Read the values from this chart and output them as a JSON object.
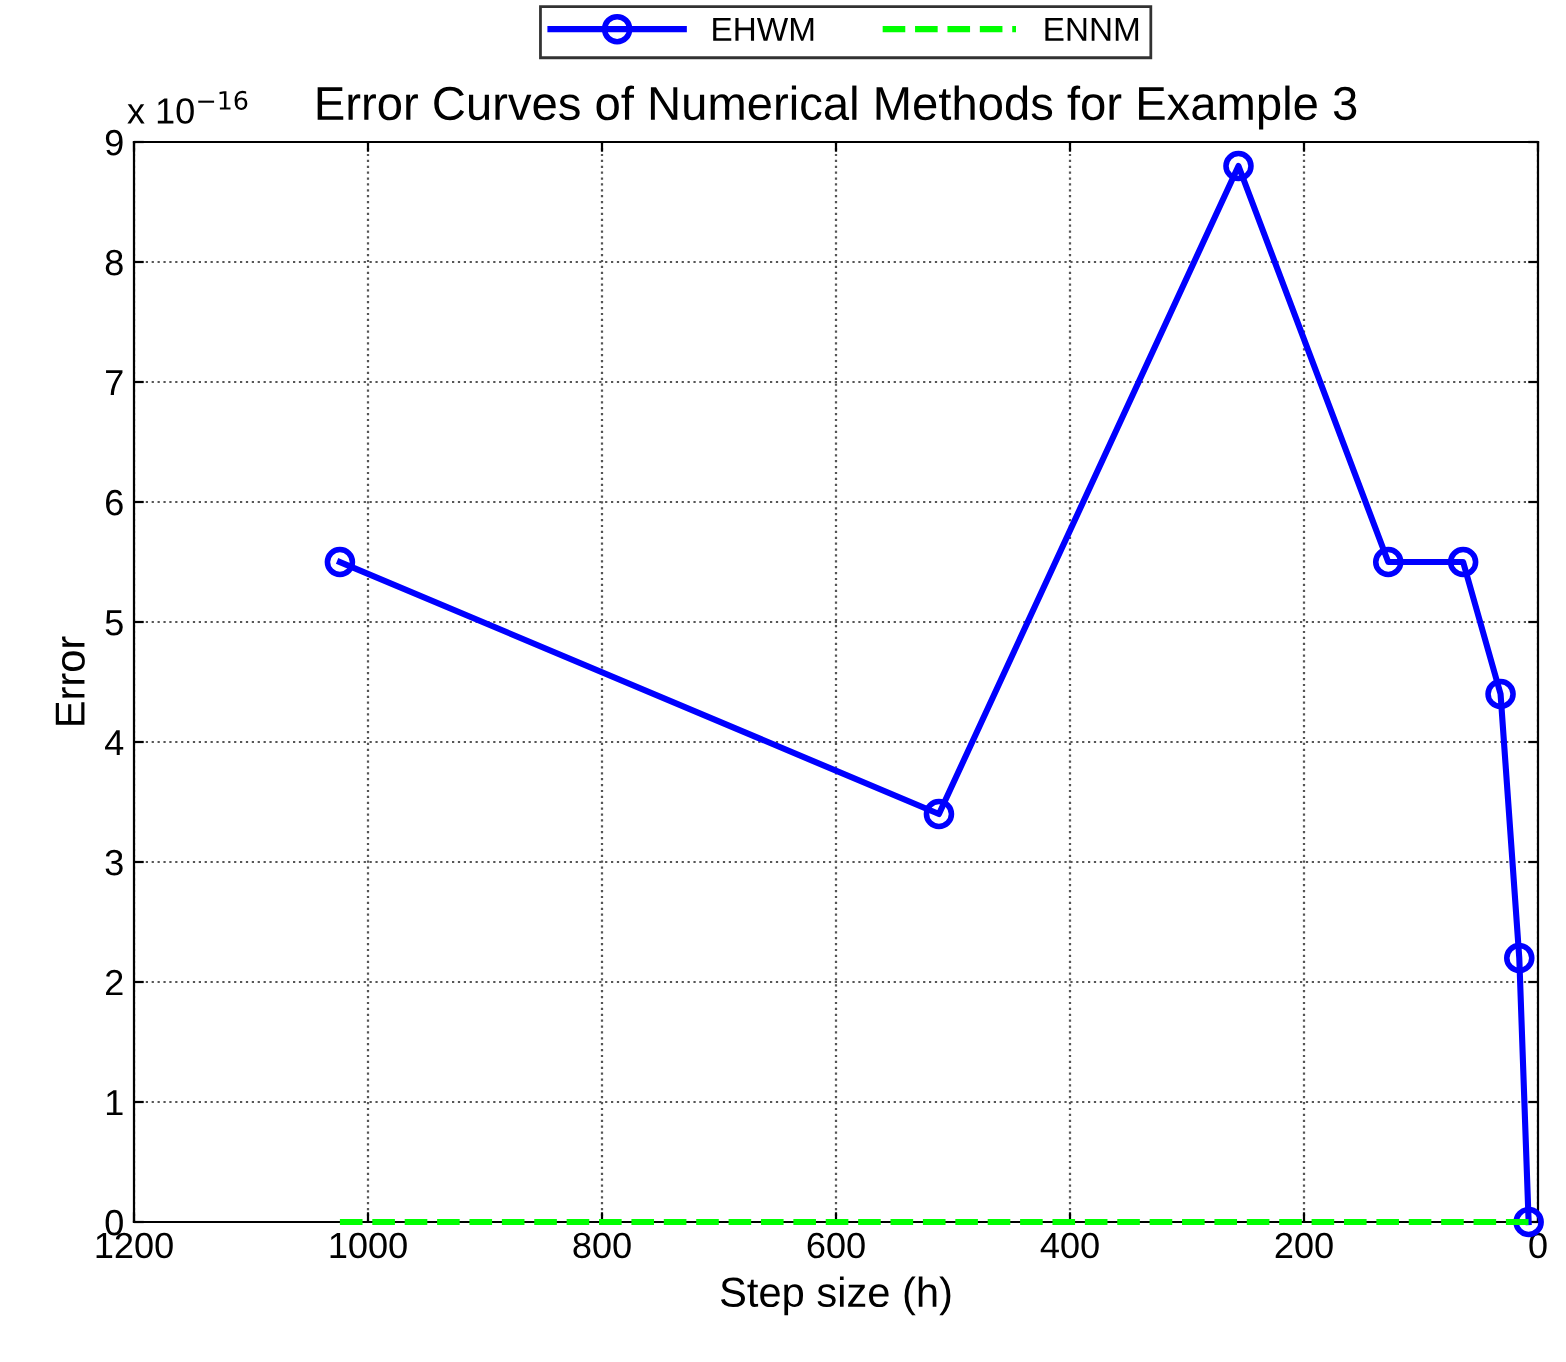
{
  "chart_data": {
    "type": "line",
    "title": "Error Curves of Numerical Methods for Example 3",
    "xlabel": "Step size (h)",
    "ylabel": "Error",
    "x": [
      1024,
      512,
      256,
      128,
      64,
      32,
      16,
      8
    ],
    "series": [
      {
        "name": "EHWM",
        "color": "#0000ff",
        "values": [
          5.5,
          3.4,
          8.8,
          5.5,
          5.5,
          4.4,
          2.2,
          0
        ],
        "marker": "circle",
        "line_style": "solid"
      },
      {
        "name": "ENNM",
        "color": "#00ff00",
        "values": [
          0,
          0,
          0,
          0,
          0,
          0,
          0,
          0
        ],
        "marker": "none",
        "line_style": "dashed"
      }
    ],
    "xlim": [
      1200,
      0
    ],
    "xticks": [
      1200,
      1000,
      800,
      600,
      400,
      200,
      0
    ],
    "ylim": [
      0,
      9
    ],
    "yticks": [
      0,
      1,
      2,
      3,
      4,
      5,
      6,
      7,
      8,
      9
    ],
    "annotations": [
      "x 10$^{−16}$"
    ],
    "grid": true,
    "legend": "top"
  }
}
